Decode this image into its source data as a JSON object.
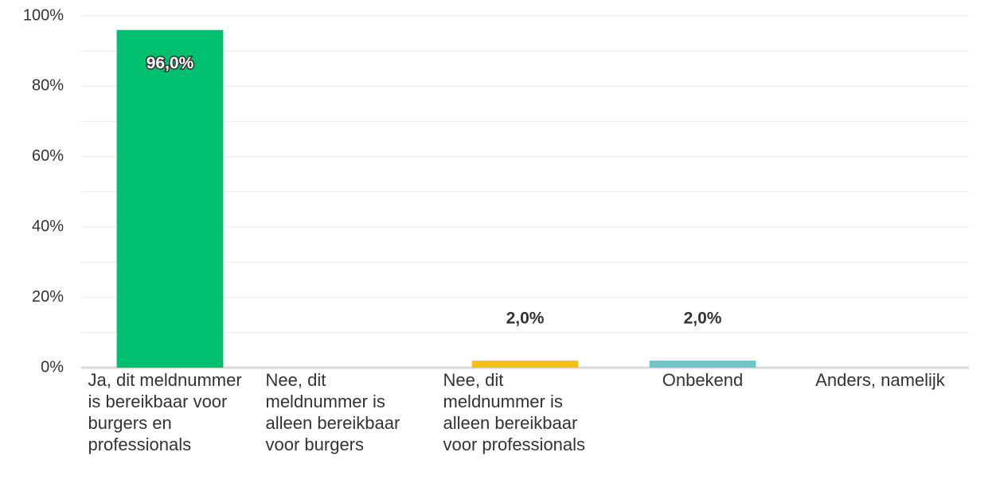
{
  "chart_data": {
    "type": "bar",
    "categories": [
      "Ja, dit meldnummer is bereikbaar voor burgers en professionals",
      "Nee, dit meldnummer is alleen bereikbaar voor burgers",
      "Nee, dit meldnummer is alleen bereikbaar voor professionals",
      "Onbekend",
      "Anders, namelijk"
    ],
    "values": [
      96,
      0,
      2,
      2,
      0
    ],
    "value_labels": [
      "96,0%",
      null,
      "2,0%",
      "2,0%",
      null
    ],
    "colors": [
      "#00bf6f",
      null,
      "#f5be1b",
      "#6cc8c6",
      null
    ],
    "ylim": [
      0,
      100
    ],
    "yticks": [
      {
        "value": 0,
        "label": "0%"
      },
      {
        "value": 20,
        "label": "20%"
      },
      {
        "value": 40,
        "label": "40%"
      },
      {
        "value": 60,
        "label": "60%"
      },
      {
        "value": 80,
        "label": "80%"
      },
      {
        "value": 100,
        "label": "100%"
      }
    ],
    "minor_yticks": [
      10,
      30,
      50,
      70,
      90
    ],
    "grid": true
  }
}
